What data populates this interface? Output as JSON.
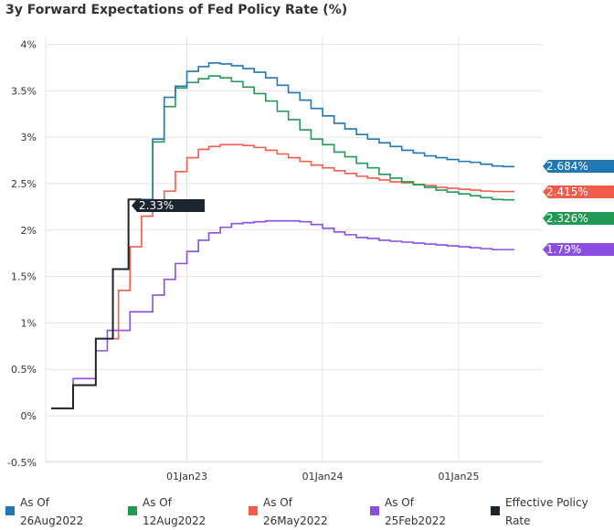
{
  "chart_data": {
    "type": "line",
    "title": "3y Forward Expectations of Fed Policy Rate (%)",
    "xlabel": "",
    "ylabel": "",
    "ylim": [
      -0.5,
      4.0
    ],
    "y_ticks": [
      -0.5,
      0,
      0.5,
      1,
      1.5,
      2,
      2.5,
      3,
      3.5,
      4
    ],
    "y_tick_labels": [
      "-0.5%",
      "0%",
      "0.5%",
      "1%",
      "1.5%",
      "2%",
      "2.5%",
      "3%",
      "3.5%",
      "4%"
    ],
    "x_range": [
      "2022-01-01",
      "2025-05-31"
    ],
    "x_ticks": [
      {
        "date": "2023-01-01",
        "label": "01Jan23"
      },
      {
        "date": "2024-01-01",
        "label": "01Jan24"
      },
      {
        "date": "2025-01-01",
        "label": "01Jan25"
      }
    ],
    "grid": true,
    "step": true,
    "series": [
      {
        "name": "As Of 26Aug2022",
        "legend_lines": [
          "As Of",
          "26Aug2022"
        ],
        "color": "#1f77b4",
        "end_label": "2.684%",
        "points": [
          [
            "2022-09-01",
            2.33
          ],
          [
            "2022-10-01",
            2.98
          ],
          [
            "2022-11-01",
            3.43
          ],
          [
            "2022-12-01",
            3.55
          ],
          [
            "2023-01-01",
            3.71
          ],
          [
            "2023-02-01",
            3.76
          ],
          [
            "2023-03-01",
            3.8
          ],
          [
            "2023-04-01",
            3.79
          ],
          [
            "2023-05-01",
            3.77
          ],
          [
            "2023-06-01",
            3.74
          ],
          [
            "2023-07-01",
            3.7
          ],
          [
            "2023-08-01",
            3.64
          ],
          [
            "2023-09-01",
            3.56
          ],
          [
            "2023-10-01",
            3.48
          ],
          [
            "2023-11-01",
            3.4
          ],
          [
            "2023-12-01",
            3.31
          ],
          [
            "2024-01-01",
            3.23
          ],
          [
            "2024-02-01",
            3.15
          ],
          [
            "2024-03-01",
            3.09
          ],
          [
            "2024-04-01",
            3.03
          ],
          [
            "2024-05-01",
            2.98
          ],
          [
            "2024-06-01",
            2.94
          ],
          [
            "2024-07-01",
            2.9
          ],
          [
            "2024-08-01",
            2.86
          ],
          [
            "2024-09-01",
            2.83
          ],
          [
            "2024-10-01",
            2.8
          ],
          [
            "2024-11-01",
            2.78
          ],
          [
            "2024-12-01",
            2.76
          ],
          [
            "2025-01-01",
            2.74
          ],
          [
            "2025-02-01",
            2.73
          ],
          [
            "2025-03-01",
            2.71
          ],
          [
            "2025-04-01",
            2.69
          ],
          [
            "2025-05-01",
            2.684
          ],
          [
            "2025-05-31",
            2.684
          ]
        ]
      },
      {
        "name": "As Of 12Aug2022",
        "legend_lines": [
          "As Of",
          "12Aug2022"
        ],
        "color": "#229955",
        "end_label": "2.326%",
        "points": [
          [
            "2022-09-01",
            2.33
          ],
          [
            "2022-10-01",
            2.95
          ],
          [
            "2022-11-01",
            3.33
          ],
          [
            "2022-12-01",
            3.53
          ],
          [
            "2023-01-01",
            3.59
          ],
          [
            "2023-02-01",
            3.63
          ],
          [
            "2023-03-01",
            3.66
          ],
          [
            "2023-04-01",
            3.64
          ],
          [
            "2023-05-01",
            3.6
          ],
          [
            "2023-06-01",
            3.54
          ],
          [
            "2023-07-01",
            3.47
          ],
          [
            "2023-08-01",
            3.39
          ],
          [
            "2023-09-01",
            3.28
          ],
          [
            "2023-10-01",
            3.19
          ],
          [
            "2023-11-01",
            3.08
          ],
          [
            "2023-12-01",
            2.98
          ],
          [
            "2024-01-01",
            2.92
          ],
          [
            "2024-02-01",
            2.84
          ],
          [
            "2024-03-01",
            2.79
          ],
          [
            "2024-04-01",
            2.72
          ],
          [
            "2024-05-01",
            2.67
          ],
          [
            "2024-06-01",
            2.6
          ],
          [
            "2024-07-01",
            2.56
          ],
          [
            "2024-08-01",
            2.52
          ],
          [
            "2024-09-01",
            2.49
          ],
          [
            "2024-10-01",
            2.46
          ],
          [
            "2024-11-01",
            2.43
          ],
          [
            "2024-12-01",
            2.41
          ],
          [
            "2025-01-01",
            2.39
          ],
          [
            "2025-02-01",
            2.37
          ],
          [
            "2025-03-01",
            2.35
          ],
          [
            "2025-04-01",
            2.33
          ],
          [
            "2025-05-01",
            2.326
          ],
          [
            "2025-05-31",
            2.326
          ]
        ]
      },
      {
        "name": "As Of 26May2022",
        "legend_lines": [
          "As Of",
          "26May2022"
        ],
        "color": "#f25c4a",
        "end_label": "2.415%",
        "points": [
          [
            "2022-06-01",
            0.83
          ],
          [
            "2022-07-01",
            1.35
          ],
          [
            "2022-08-01",
            1.82
          ],
          [
            "2022-09-01",
            2.15
          ],
          [
            "2022-10-01",
            2.24
          ],
          [
            "2022-11-01",
            2.42
          ],
          [
            "2022-12-01",
            2.63
          ],
          [
            "2023-01-01",
            2.78
          ],
          [
            "2023-02-01",
            2.87
          ],
          [
            "2023-03-01",
            2.9
          ],
          [
            "2023-04-01",
            2.92
          ],
          [
            "2023-05-01",
            2.92
          ],
          [
            "2023-06-01",
            2.91
          ],
          [
            "2023-07-01",
            2.89
          ],
          [
            "2023-08-01",
            2.86
          ],
          [
            "2023-09-01",
            2.82
          ],
          [
            "2023-10-01",
            2.78
          ],
          [
            "2023-11-01",
            2.74
          ],
          [
            "2023-12-01",
            2.7
          ],
          [
            "2024-01-01",
            2.67
          ],
          [
            "2024-02-01",
            2.64
          ],
          [
            "2024-03-01",
            2.61
          ],
          [
            "2024-04-01",
            2.58
          ],
          [
            "2024-05-01",
            2.56
          ],
          [
            "2024-06-01",
            2.54
          ],
          [
            "2024-07-01",
            2.52
          ],
          [
            "2024-08-01",
            2.51
          ],
          [
            "2024-09-01",
            2.49
          ],
          [
            "2024-10-01",
            2.48
          ],
          [
            "2024-11-01",
            2.46
          ],
          [
            "2024-12-01",
            2.45
          ],
          [
            "2025-01-01",
            2.44
          ],
          [
            "2025-02-01",
            2.43
          ],
          [
            "2025-03-01",
            2.42
          ],
          [
            "2025-04-01",
            2.415
          ],
          [
            "2025-05-31",
            2.415
          ]
        ]
      },
      {
        "name": "As Of 25Feb2022",
        "legend_lines": [
          "As Of",
          "25Feb2022"
        ],
        "color": "#8a4fe0",
        "end_label": "1.79%",
        "points": [
          [
            "2022-01-01",
            0.08
          ],
          [
            "2022-02-01",
            0.08
          ],
          [
            "2022-03-01",
            0.4
          ],
          [
            "2022-04-01",
            0.4
          ],
          [
            "2022-05-01",
            0.7
          ],
          [
            "2022-06-01",
            0.92
          ],
          [
            "2022-07-01",
            0.92
          ],
          [
            "2022-08-01",
            1.12
          ],
          [
            "2022-09-01",
            1.12
          ],
          [
            "2022-10-01",
            1.3
          ],
          [
            "2022-11-01",
            1.47
          ],
          [
            "2022-12-01",
            1.64
          ],
          [
            "2023-01-01",
            1.77
          ],
          [
            "2023-02-01",
            1.89
          ],
          [
            "2023-03-01",
            1.97
          ],
          [
            "2023-04-01",
            2.03
          ],
          [
            "2023-05-01",
            2.07
          ],
          [
            "2023-06-01",
            2.08
          ],
          [
            "2023-07-01",
            2.09
          ],
          [
            "2023-08-01",
            2.1
          ],
          [
            "2023-09-01",
            2.1
          ],
          [
            "2023-10-01",
            2.1
          ],
          [
            "2023-11-01",
            2.09
          ],
          [
            "2023-12-01",
            2.06
          ],
          [
            "2024-01-01",
            2.02
          ],
          [
            "2024-02-01",
            1.98
          ],
          [
            "2024-03-01",
            1.95
          ],
          [
            "2024-04-01",
            1.92
          ],
          [
            "2024-05-01",
            1.91
          ],
          [
            "2024-06-01",
            1.89
          ],
          [
            "2024-07-01",
            1.88
          ],
          [
            "2024-08-01",
            1.87
          ],
          [
            "2024-09-01",
            1.86
          ],
          [
            "2024-10-01",
            1.85
          ],
          [
            "2024-11-01",
            1.84
          ],
          [
            "2024-12-01",
            1.83
          ],
          [
            "2025-01-01",
            1.82
          ],
          [
            "2025-02-01",
            1.81
          ],
          [
            "2025-03-01",
            1.8
          ],
          [
            "2025-04-01",
            1.79
          ],
          [
            "2025-05-31",
            1.79
          ]
        ]
      },
      {
        "name": "Effective Policy Rate",
        "legend_lines": [
          "Effective Policy",
          "Rate"
        ],
        "color": "#1c2430",
        "end_label": "2.33%",
        "points": [
          [
            "2022-01-01",
            0.08
          ],
          [
            "2022-02-01",
            0.08
          ],
          [
            "2022-03-01",
            0.33
          ],
          [
            "2022-04-01",
            0.33
          ],
          [
            "2022-05-01",
            0.83
          ],
          [
            "2022-06-01",
            0.83
          ],
          [
            "2022-06-16",
            1.58
          ],
          [
            "2022-07-01",
            1.58
          ],
          [
            "2022-07-28",
            2.33
          ],
          [
            "2022-09-01",
            2.33
          ]
        ]
      }
    ]
  }
}
